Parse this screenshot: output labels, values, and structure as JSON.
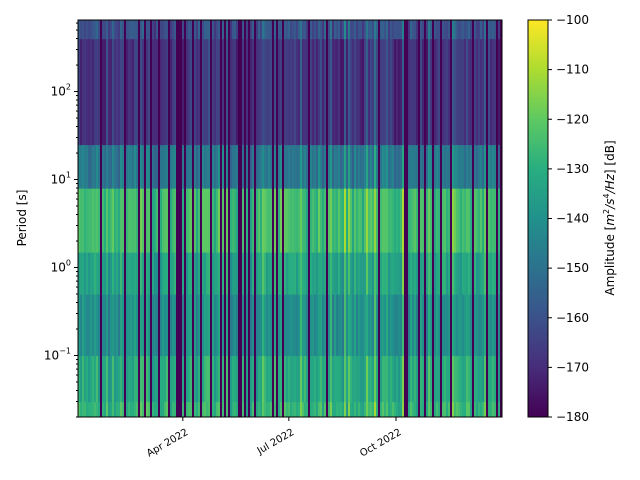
{
  "chart_data": {
    "type": "heatmap",
    "title": "",
    "xlabel": "",
    "ylabel": "Period [s]",
    "x_axis": {
      "type": "date",
      "range": [
        "2022-01-01",
        "2022-12-31"
      ],
      "ticks": [
        {
          "date": "2022-04-01",
          "label": "Apr 2022"
        },
        {
          "date": "2022-07-01",
          "label": "Jul 2022"
        },
        {
          "date": "2022-10-01",
          "label": "Oct 2022"
        }
      ]
    },
    "y_axis": {
      "scale": "log",
      "range": [
        0.02,
        650
      ],
      "ticks": [
        {
          "value": 0.1,
          "base": "10",
          "exp": "−1"
        },
        {
          "value": 1,
          "base": "10",
          "exp": "0"
        },
        {
          "value": 10,
          "base": "10",
          "exp": "1"
        },
        {
          "value": 100,
          "base": "10",
          "exp": "2"
        }
      ]
    },
    "colorbar": {
      "colormap": "viridis",
      "label_prefix": "Amplitude [",
      "label_unit_m": "m",
      "label_unit_sup1": "2",
      "label_unit_mid": "/s",
      "label_unit_sup2": "4",
      "label_unit_end": "/Hz",
      "label_suffix": "] [dB]",
      "range": [
        -180,
        -100
      ],
      "ticks": [
        -100,
        -110,
        -120,
        -130,
        -140,
        -150,
        -160,
        -170,
        -180
      ],
      "tick_labels": [
        "−100",
        "−110",
        "−120",
        "−130",
        "−140",
        "−150",
        "−160",
        "−170",
        "−180"
      ]
    },
    "period_bands": [
      {
        "period_range": [
          0.02,
          0.03
        ],
        "typical_db": -128
      },
      {
        "period_range": [
          0.03,
          0.1
        ],
        "typical_db": -132
      },
      {
        "period_range": [
          0.1,
          0.5
        ],
        "typical_db": -140
      },
      {
        "period_range": [
          0.5,
          1.5
        ],
        "typical_db": -134
      },
      {
        "period_range": [
          1.5,
          8
        ],
        "typical_db": -126
      },
      {
        "period_range": [
          8,
          25
        ],
        "typical_db": -148
      },
      {
        "period_range": [
          25,
          400
        ],
        "typical_db": -168
      },
      {
        "period_range": [
          400,
          650
        ],
        "typical_db": -160
      }
    ],
    "data_gaps": "frequent vertical gaps (no data) throughout the year"
  }
}
